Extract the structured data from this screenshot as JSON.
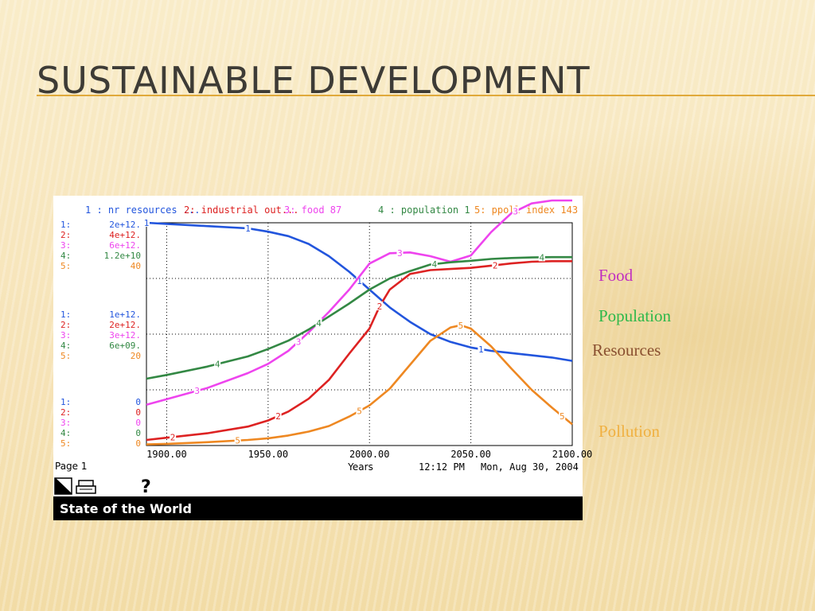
{
  "slide": {
    "title": "SUSTAINABLE DEVELOPMENT"
  },
  "side_labels": {
    "food": "Food",
    "population": "Population",
    "resources": "Resources",
    "pollution": "Pollution"
  },
  "colors": {
    "resources": "#2255dd",
    "industrial": "#dd2222",
    "food": "#ee44ee",
    "population": "#338844",
    "pollution": "#ee8822",
    "side_food": "#c030c0",
    "side_population": "#2db84a",
    "side_resources": "#8a5030",
    "side_pollution": "#f0b040",
    "title_rule": "#e0a93a"
  },
  "chart_data": {
    "type": "line",
    "xlabel": "Years",
    "xlim": [
      1890,
      2100
    ],
    "x_ticks": [
      "1900.00",
      "1950.00",
      "2000.00",
      "2050.00",
      "2100.00"
    ],
    "x_tick_values": [
      1900,
      1950,
      2000,
      2050,
      2100
    ],
    "grid": true,
    "legend": [
      {
        "num": "1",
        "label": "1 : nr resources ...",
        "series": "resources"
      },
      {
        "num": "2",
        "label": "2: industrial out...",
        "series": "industrial"
      },
      {
        "num": "3",
        "label": "3: food 87",
        "series": "food"
      },
      {
        "num": "4",
        "label": "4 : population 1",
        "series": "population"
      },
      {
        "num": "5",
        "label": "5: ppoll index 143",
        "series": "pollution"
      }
    ],
    "scales": {
      "top": {
        "labels": [
          "1:",
          "2:",
          "3:",
          "4:",
          "5:"
        ],
        "values": [
          "2e+12.",
          "4e+12.",
          "6e+12.",
          "1.2e+10",
          "40"
        ]
      },
      "middle": {
        "labels": [
          "1:",
          "2:",
          "3:",
          "4:",
          "5:"
        ],
        "values": [
          "1e+12.",
          "2e+12.",
          "3e+12.",
          "6e+09.",
          "20"
        ]
      },
      "bottom": {
        "labels": [
          "1:",
          "2:",
          "3:",
          "4:",
          "5:"
        ],
        "values": [
          "0",
          "0",
          "0",
          "0",
          "0"
        ]
      }
    },
    "series": [
      {
        "key": "resources",
        "num": "1",
        "max": 2000000000000,
        "x": [
          1890,
          1900,
          1920,
          1940,
          1950,
          1960,
          1970,
          1980,
          1990,
          2000,
          2010,
          2020,
          2030,
          2040,
          2050,
          2060,
          2070,
          2080,
          2090,
          2100
        ],
        "y": [
          2000000000000,
          1990000000000,
          1970000000000,
          1950000000000,
          1920000000000,
          1880000000000,
          1810000000000,
          1700000000000,
          1560000000000,
          1400000000000,
          1240000000000,
          1110000000000,
          1000000000000,
          930000000000,
          880000000000,
          850000000000,
          830000000000,
          810000000000,
          790000000000,
          760000000000
        ],
        "marker_x": [
          1890,
          1940,
          1995,
          2055
        ]
      },
      {
        "key": "industrial",
        "num": "2",
        "max": 4000000000000,
        "x": [
          1890,
          1900,
          1920,
          1940,
          1950,
          1960,
          1970,
          1980,
          1990,
          2000,
          2005,
          2010,
          2020,
          2030,
          2040,
          2050,
          2060,
          2070,
          2080,
          2090,
          2100
        ],
        "y": [
          100000000000,
          140000000000,
          220000000000,
          340000000000,
          450000000000,
          610000000000,
          840000000000,
          1180000000000,
          1650000000000,
          2100000000000,
          2500000000000,
          2800000000000,
          3080000000000,
          3150000000000,
          3170000000000,
          3190000000000,
          3230000000000,
          3270000000000,
          3300000000000,
          3310000000000,
          3310000000000
        ],
        "marker_x": [
          1903,
          1955,
          2005,
          2062
        ]
      },
      {
        "key": "food",
        "num": "3",
        "max": 6000000000000,
        "x": [
          1890,
          1900,
          1920,
          1940,
          1950,
          1960,
          1970,
          1980,
          1990,
          2000,
          2010,
          2020,
          2030,
          2040,
          2050,
          2060,
          2070,
          2080,
          2090,
          2100
        ],
        "y": [
          1100000000000,
          1250000000000,
          1550000000000,
          1950000000000,
          2200000000000,
          2550000000000,
          3050000000000,
          3600000000000,
          4200000000000,
          4900000000000,
          5180000000000,
          5200000000000,
          5100000000000,
          4950000000000,
          5120000000000,
          5750000000000,
          6260000000000,
          6520000000000,
          6600000000000,
          6600000000000
        ],
        "marker_x": [
          1915,
          1965,
          2015,
          2072
        ]
      },
      {
        "key": "population",
        "num": "4",
        "max": 12000000000,
        "x": [
          1890,
          1900,
          1920,
          1940,
          1950,
          1960,
          1970,
          1980,
          1990,
          2000,
          2010,
          2020,
          2030,
          2040,
          2050,
          2060,
          2070,
          2080,
          2090,
          2100
        ],
        "y": [
          3600000000,
          3800000000,
          4250000000,
          4800000000,
          5200000000,
          5650000000,
          6250000000,
          6950000000,
          7650000000,
          8400000000,
          9000000000,
          9400000000,
          9750000000,
          9870000000,
          9950000000,
          10050000000,
          10100000000,
          10130000000,
          10150000000,
          10150000000
        ],
        "marker_x": [
          1925,
          1975,
          2032,
          2085
        ]
      },
      {
        "key": "pollution",
        "num": "5",
        "max": 40,
        "x": [
          1890,
          1900,
          1920,
          1940,
          1950,
          1960,
          1970,
          1980,
          1990,
          2000,
          2010,
          2020,
          2030,
          2040,
          2045,
          2050,
          2060,
          2070,
          2080,
          2090,
          2100
        ],
        "y": [
          0.2,
          0.3,
          0.6,
          1.0,
          1.3,
          1.8,
          2.5,
          3.5,
          5.2,
          7.2,
          10.2,
          14.5,
          18.8,
          21.2,
          21.6,
          21.0,
          17.8,
          13.8,
          10.0,
          6.8,
          3.8
        ],
        "marker_x": [
          1935,
          1995,
          2045,
          2095
        ]
      }
    ]
  },
  "footer": {
    "page": "Page 1",
    "time": "12:12 PM",
    "date": "Mon, Aug 30, 2004",
    "status": "State of the World",
    "help": "?"
  }
}
